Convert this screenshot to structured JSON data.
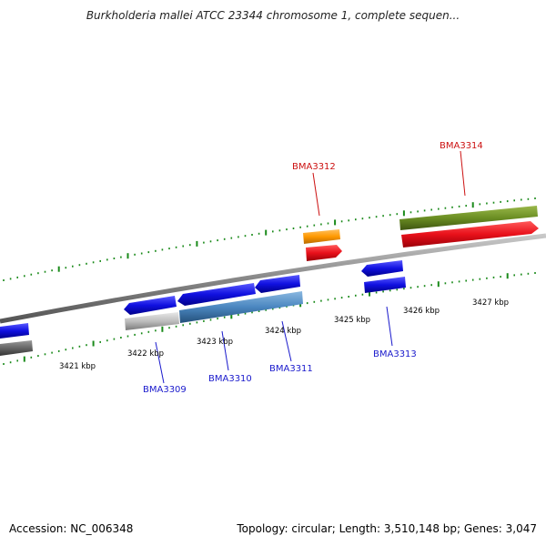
{
  "title": "Burkholderia mallei ATCC 23344 chromosome 1, complete sequen...",
  "footer": {
    "accession": "Accession: NC_006348",
    "topology": "Topology: circular; Length: 3,510,148 bp; Genes: 3,047"
  },
  "scale_labels": [
    "3421 kbp",
    "3422 kbp",
    "3423 kbp",
    "3424 kbp",
    "3425 kbp",
    "3426 kbp",
    "3427 kbp"
  ],
  "gene_labels": [
    {
      "text": "BMA3309",
      "color": "#1a1acc"
    },
    {
      "text": "BMA3310",
      "color": "#1a1acc"
    },
    {
      "text": "BMA3311",
      "color": "#1a1acc"
    },
    {
      "text": "BMA3312",
      "color": "#cc1111"
    },
    {
      "text": "BMA3313",
      "color": "#1a1acc"
    },
    {
      "text": "BMA3314",
      "color": "#cc1111"
    }
  ],
  "colors": {
    "forward_strand": "#e8101a",
    "reverse_strand": "#1010e0",
    "backbone": "#888888",
    "ticks": "#1a8a1a",
    "cog_steelblue": "#4a86c0",
    "cog_olive": "#6b8e23",
    "cog_orange": "#ff9900",
    "cog_gray": "#bdbdbd"
  }
}
